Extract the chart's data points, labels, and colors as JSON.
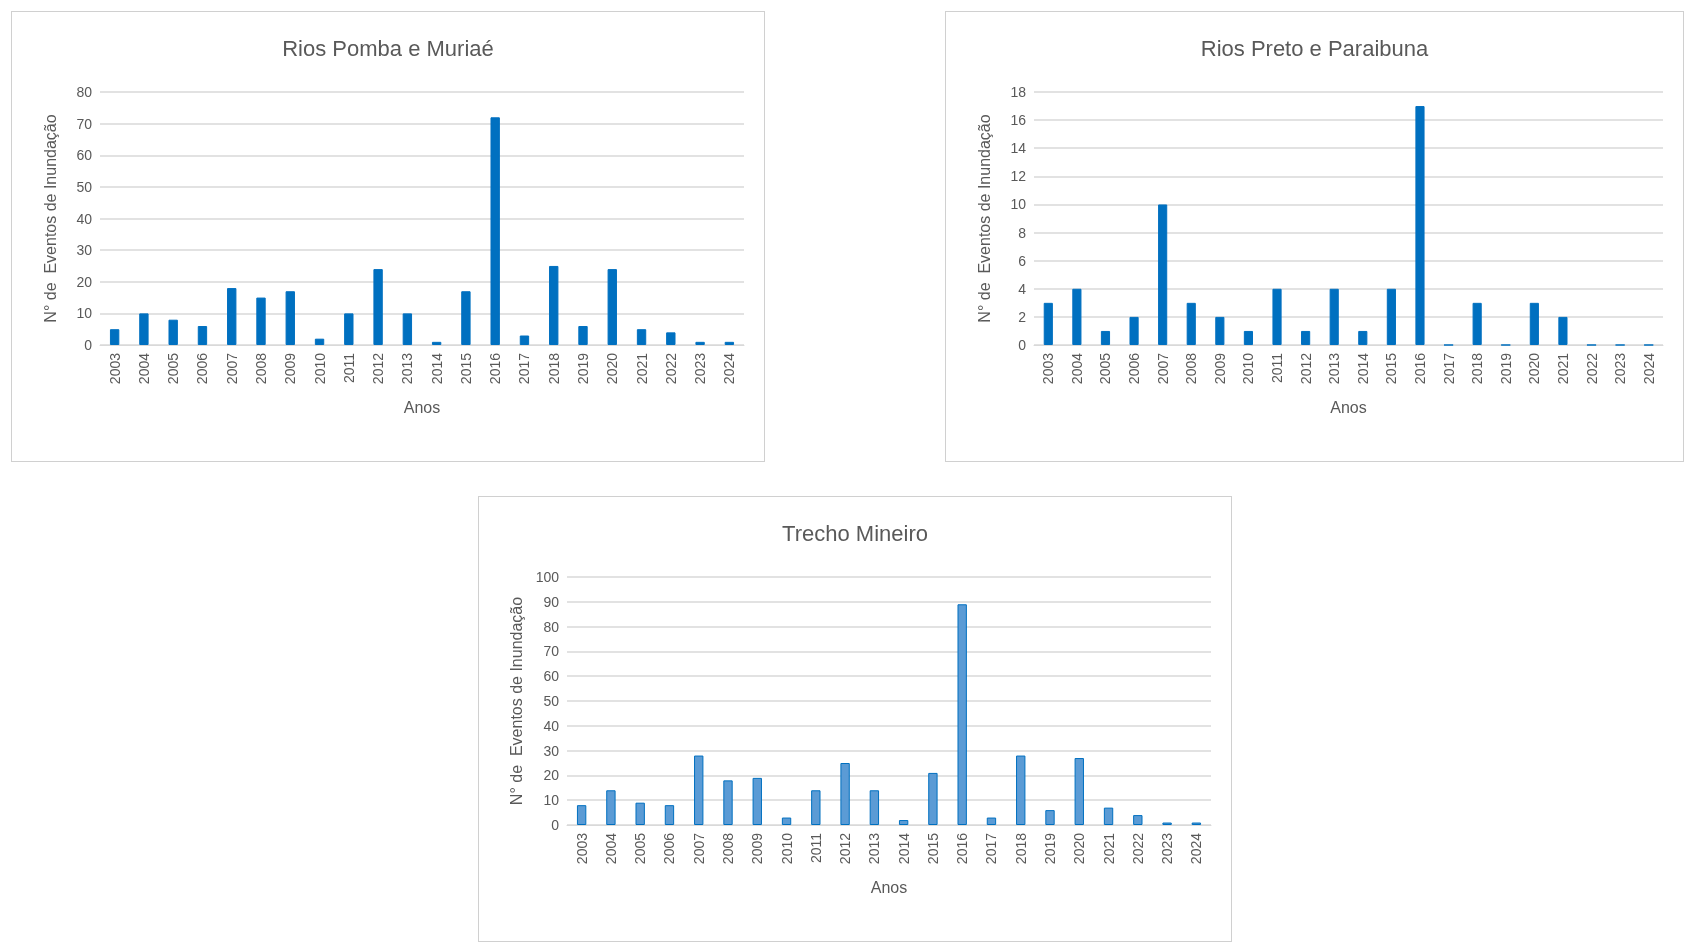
{
  "chart_data": [
    {
      "type": "bar",
      "title": "Rios Pomba e Muriaé",
      "xlabel": "Anos",
      "ylabel": "N° de  Eventos de Inundação",
      "categories": [
        "2003",
        "2004",
        "2005",
        "2006",
        "2007",
        "2008",
        "2009",
        "2010",
        "2011",
        "2012",
        "2013",
        "2014",
        "2015",
        "2016",
        "2017",
        "2018",
        "2019",
        "2020",
        "2021",
        "2022",
        "2023",
        "2024"
      ],
      "values": [
        5,
        10,
        8,
        6,
        18,
        15,
        17,
        2,
        10,
        24,
        10,
        1,
        17,
        72,
        3,
        25,
        6,
        24,
        5,
        4,
        1,
        1
      ],
      "color": "#0070c0",
      "ylim": [
        0,
        80
      ],
      "yticks": [
        0,
        10,
        20,
        30,
        40,
        50,
        60,
        70,
        80
      ],
      "grid": "y"
    },
    {
      "type": "bar",
      "title": "Rios Preto e Paraibuna",
      "xlabel": "Anos",
      "ylabel": "N° de  Eventos de Inundação",
      "categories": [
        "2003",
        "2004",
        "2005",
        "2006",
        "2007",
        "2008",
        "2009",
        "2010",
        "2011",
        "2012",
        "2013",
        "2014",
        "2015",
        "2016",
        "2017",
        "2018",
        "2019",
        "2020",
        "2021",
        "2022",
        "2023",
        "2024"
      ],
      "values": [
        3,
        4,
        1,
        2,
        10,
        3,
        2,
        1,
        4,
        1,
        4,
        1,
        4,
        17,
        0,
        3,
        0,
        3,
        2,
        0,
        0,
        0
      ],
      "color": "#0070c0",
      "ylim": [
        0,
        18
      ],
      "yticks": [
        0,
        2,
        4,
        6,
        8,
        10,
        12,
        14,
        16,
        18
      ],
      "grid": "y"
    },
    {
      "type": "bar",
      "title": "Trecho Mineiro",
      "xlabel": "Anos",
      "ylabel": "N° de  Eventos de Inundação",
      "categories": [
        "2003",
        "2004",
        "2005",
        "2006",
        "2007",
        "2008",
        "2009",
        "2010",
        "2011",
        "2012",
        "2013",
        "2014",
        "2015",
        "2016",
        "2017",
        "2018",
        "2019",
        "2020",
        "2021",
        "2022",
        "2023",
        "2024"
      ],
      "values": [
        8,
        14,
        9,
        8,
        28,
        18,
        19,
        3,
        14,
        25,
        14,
        2,
        21,
        89,
        3,
        28,
        6,
        27,
        7,
        4,
        1,
        1
      ],
      "color": "#5b9bd5",
      "ylim": [
        0,
        100
      ],
      "yticks": [
        0,
        10,
        20,
        30,
        40,
        50,
        60,
        70,
        80,
        90,
        100
      ],
      "grid": "y"
    }
  ]
}
